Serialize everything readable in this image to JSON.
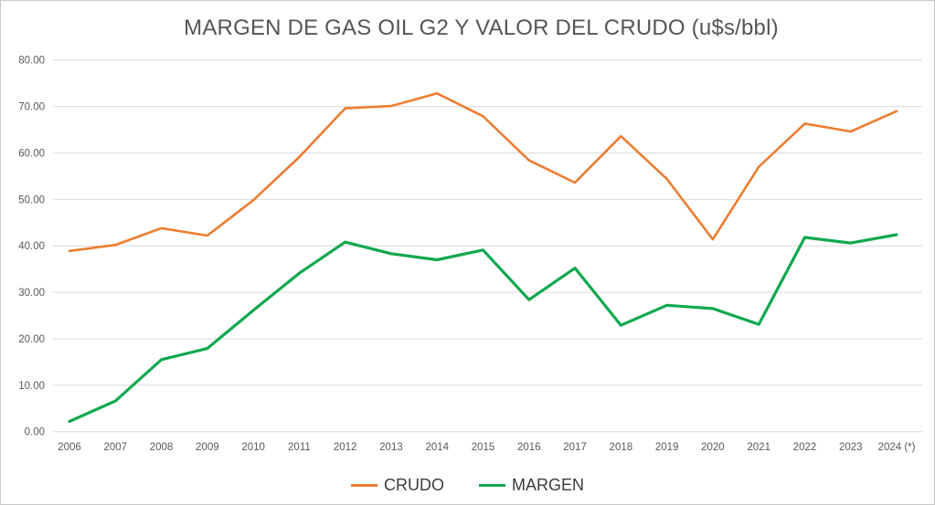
{
  "chart_data": {
    "type": "line",
    "title": "MARGEN DE GAS OIL G2 Y VALOR DEL CRUDO (u$s/bbl)",
    "x_categories": [
      "2006",
      "2007",
      "2008",
      "2009",
      "2010",
      "2011",
      "2012",
      "2013",
      "2014",
      "2015",
      "2016",
      "2017",
      "2018",
      "2019",
      "2020",
      "2021",
      "2022",
      "2023",
      "2024 (*)"
    ],
    "series": [
      {
        "name": "CRUDO",
        "color": "#ED7D31",
        "values": [
          38.9,
          40.2,
          43.8,
          42.2,
          49.8,
          59.1,
          69.6,
          70.1,
          72.8,
          67.9,
          58.4,
          53.6,
          63.6,
          54.4,
          41.4,
          57.0,
          66.3,
          64.6,
          69.0
        ]
      },
      {
        "name": "MARGEN",
        "color": "#10A84F",
        "values": [
          2.2,
          6.6,
          15.5,
          17.9,
          26.1,
          34.1,
          40.8,
          38.3,
          37.0,
          39.1,
          28.4,
          35.2,
          22.9,
          27.2,
          26.5,
          23.1,
          41.8,
          40.6,
          42.4
        ]
      }
    ],
    "ylim": [
      0,
      80
    ],
    "ytick_step": 10,
    "ytick_labels": [
      "0.00",
      "10.00",
      "20.00",
      "30.00",
      "40.00",
      "50.00",
      "60.00",
      "70.00",
      "80.00"
    ],
    "grid": true,
    "legend_position": "bottom",
    "grid_color": "#D9D9D9",
    "axis_label_color": "#595959",
    "title_color": "#555555",
    "legend_text_color": "#3B3B3B"
  }
}
